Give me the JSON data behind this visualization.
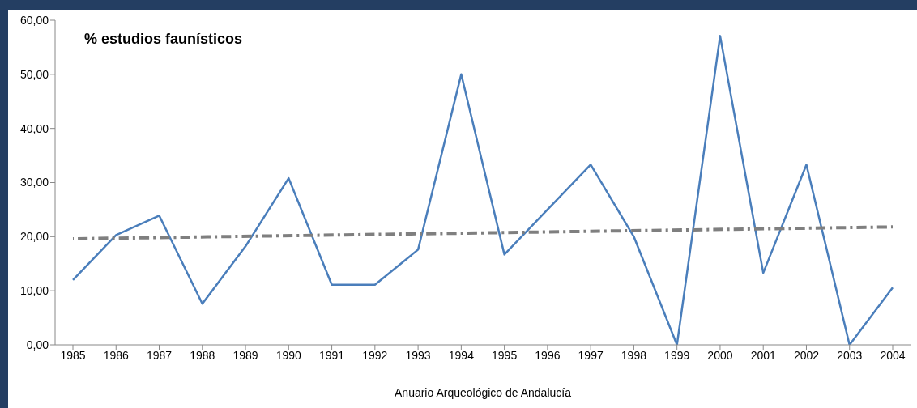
{
  "chart_data": {
    "type": "line",
    "title": "% estudios faunísticos",
    "xlabel": "Anuario Arqueológico de Andalucía",
    "categories": [
      "1985",
      "1986",
      "1987",
      "1988",
      "1989",
      "1990",
      "1991",
      "1992",
      "1993",
      "1994",
      "1995",
      "1996",
      "1997",
      "1998",
      "1999",
      "2000",
      "2001",
      "2002",
      "2003",
      "2004"
    ],
    "series": [
      {
        "color": "#4a7ebb",
        "values": [
          12.0,
          20.3,
          23.9,
          7.6,
          18.2,
          30.8,
          11.1,
          11.1,
          17.6,
          50.0,
          16.7,
          25.0,
          33.3,
          20.0,
          0,
          57.1,
          13.3,
          33.3,
          0,
          10.6
        ]
      },
      {
        "color": "#7f7f7f",
        "line_style": "dashed",
        "values": [
          19.6,
          null,
          null,
          null,
          null,
          null,
          null,
          null,
          null,
          null,
          null,
          null,
          null,
          null,
          null,
          null,
          null,
          null,
          null,
          21.8
        ]
      }
    ],
    "ylim": [
      0,
      60
    ],
    "yticks": [
      {
        "value": 0,
        "label": "0,00"
      },
      {
        "value": 10,
        "label": "10,00"
      },
      {
        "value": 20,
        "label": "20,00"
      },
      {
        "value": 30,
        "label": "30,00"
      },
      {
        "value": 40,
        "label": "40,00"
      },
      {
        "value": 50,
        "label": "50,00"
      },
      {
        "value": 60,
        "label": "60,00"
      }
    ],
    "marker": "none",
    "grid": false
  }
}
